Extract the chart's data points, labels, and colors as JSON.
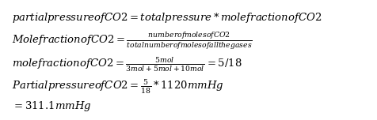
{
  "line1": "$partialpressureofCO2 = totalpressure * molefractionofCO2$",
  "line2": "$MolefractionofCO2 = \\frac{numberofmolesofCO2}{totalnumberofmolesofallthegases}$",
  "line3": "$molefractionofCO2 = \\frac{5mol}{3mol+5mol+10mol} = 5/18$",
  "line4": "$PartialpressureofCO2 = \\frac{5}{18} * 1120mmHg$",
  "line5": "$= 311.1mmHg$",
  "background_color": "#ffffff",
  "text_color": "#000000",
  "fontsize_line1": 9.5,
  "fontsize_rest": 9.5
}
